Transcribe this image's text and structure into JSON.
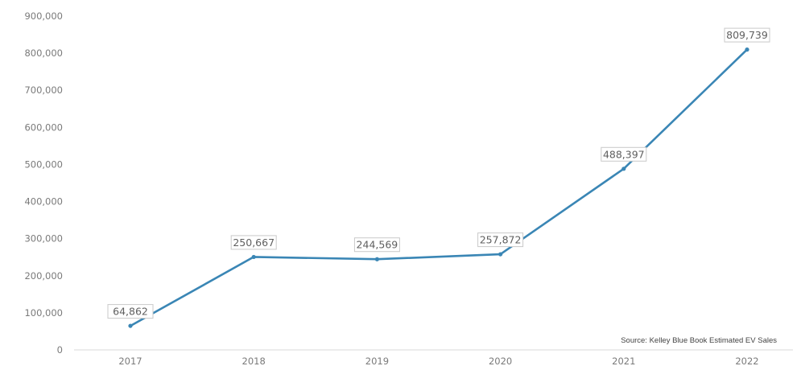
{
  "chart_data": {
    "type": "line",
    "title": "",
    "xlabel": "",
    "ylabel": "",
    "categories": [
      "2017",
      "2018",
      "2019",
      "2020",
      "2021",
      "2022"
    ],
    "series": [
      {
        "values": [
          64862,
          250667,
          244569,
          257872,
          488397,
          809739
        ],
        "labels": [
          "64,862",
          "250,667",
          "244,569",
          "257,872",
          "488,397",
          "809,739"
        ],
        "color": "#3a86b5"
      }
    ],
    "ylim": [
      0,
      900000
    ],
    "y_ticks": [
      0,
      100000,
      200000,
      300000,
      400000,
      500000,
      600000,
      700000,
      800000,
      900000
    ],
    "y_tick_labels": [
      "0",
      "100,000",
      "200,000",
      "300,000",
      "400,000",
      "500,000",
      "600,000",
      "700,000",
      "800,000",
      "900,000"
    ],
    "grid": false,
    "legend": "none",
    "source_note": "Source: Kelley Blue Book Estimated EV Sales"
  }
}
